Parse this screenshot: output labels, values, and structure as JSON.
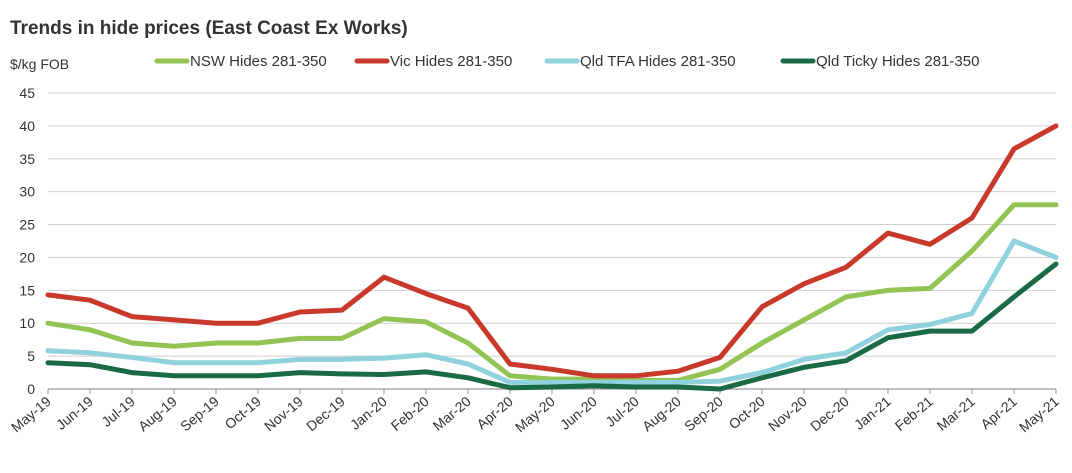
{
  "chart_data": {
    "type": "line",
    "title": "Trends in hide prices (East Coast Ex Works)",
    "ylabel": "$/kg FOB",
    "xlabel": "",
    "ylim": [
      0,
      45
    ],
    "yticks": [
      "0",
      "5",
      "10",
      "15",
      "20",
      "25",
      "30",
      "35",
      "40",
      "45"
    ],
    "grid": true,
    "legend": "top",
    "categories": [
      "May-19",
      "Jun-19",
      "Jul-19",
      "Aug-19",
      "Sep-19",
      "Oct-19",
      "Nov-19",
      "Dec-19",
      "Jan-20",
      "Feb-20",
      "Mar-20",
      "Apr-20",
      "May-20",
      "Jun-20",
      "Jul-20",
      "Aug-20",
      "Sep-20",
      "Oct-20",
      "Nov-20",
      "Dec-20",
      "Jan-21",
      "Feb-21",
      "Mar-21",
      "Apr-21",
      "May-21"
    ],
    "series": [
      {
        "name": "NSW Hides 281-350",
        "color": "#92c353",
        "values": [
          10,
          9,
          7,
          6.5,
          7,
          7,
          7.7,
          7.7,
          10.7,
          10.2,
          7,
          2,
          1.5,
          1.5,
          1.3,
          1.3,
          3,
          7,
          10.5,
          14,
          15,
          15.3,
          21,
          28,
          28
        ]
      },
      {
        "name": "Vic Hides 281-350",
        "color": "#c9392b",
        "values": [
          14.3,
          13.5,
          11,
          10.5,
          10,
          10,
          11.7,
          12,
          17,
          14.5,
          12.3,
          3.8,
          3,
          2,
          2,
          2.7,
          4.8,
          12.5,
          16,
          18.5,
          23.7,
          22,
          26,
          36.5,
          40
        ]
      },
      {
        "name": "Qld TFA Hides 281-350",
        "color": "#8fd1dd",
        "values": [
          5.8,
          5.5,
          4.8,
          4,
          4,
          4,
          4.5,
          4.5,
          4.7,
          5.2,
          3.8,
          1,
          1,
          1,
          1,
          1,
          1.2,
          2.5,
          4.5,
          5.5,
          9,
          9.8,
          11.5,
          22.5,
          20
        ]
      },
      {
        "name": "Qld Ticky Hides 281-350",
        "color": "#1a6b45",
        "values": [
          4,
          3.7,
          2.5,
          2,
          2,
          2,
          2.5,
          2.3,
          2.2,
          2.6,
          1.7,
          0.2,
          0.3,
          0.5,
          0.3,
          0.3,
          0,
          1.7,
          3.3,
          4.3,
          7.8,
          8.8,
          8.8,
          14,
          19
        ]
      }
    ]
  }
}
